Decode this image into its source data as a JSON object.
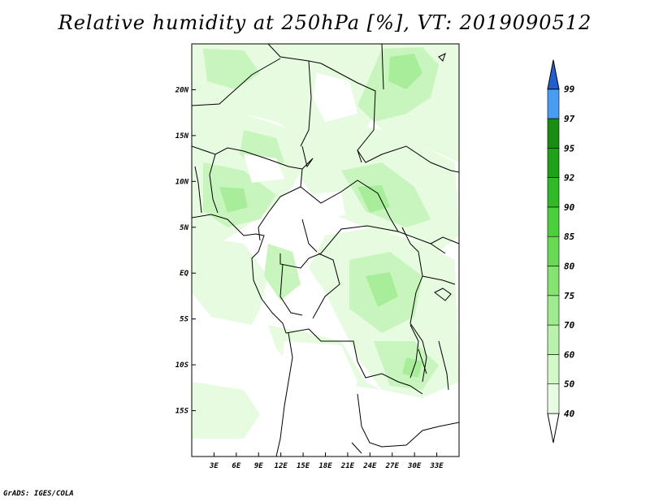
{
  "title": "Relative humidity at 250hPa [%], VT: 2019090512",
  "credit": "GrADS: IGES/COLA",
  "colors": {
    "fill_light": "#e6fbe0",
    "fill_mid": "#c8f5bd",
    "fill_deep": "#a8ee9a",
    "border": "#000000"
  },
  "map": {
    "lon_range": [
      0,
      36
    ],
    "lat_range": [
      -20,
      25
    ],
    "x_ticks": [
      {
        "lon": 3,
        "label": "3E"
      },
      {
        "lon": 6,
        "label": "6E"
      },
      {
        "lon": 9,
        "label": "9E"
      },
      {
        "lon": 12,
        "label": "12E"
      },
      {
        "lon": 15,
        "label": "15E"
      },
      {
        "lon": 18,
        "label": "18E"
      },
      {
        "lon": 21,
        "label": "21E"
      },
      {
        "lon": 24,
        "label": "24E"
      },
      {
        "lon": 27,
        "label": "27E"
      },
      {
        "lon": 30,
        "label": "30E"
      },
      {
        "lon": 33,
        "label": "33E"
      }
    ],
    "y_ticks": [
      {
        "lat": 20,
        "label": "20N"
      },
      {
        "lat": 15,
        "label": "15N"
      },
      {
        "lat": 10,
        "label": "10N"
      },
      {
        "lat": 5,
        "label": "5N"
      },
      {
        "lat": 0,
        "label": "EQ"
      },
      {
        "lat": -5,
        "label": "5S"
      },
      {
        "lat": -10,
        "label": "10S"
      },
      {
        "lat": -15,
        "label": "15S"
      }
    ]
  },
  "legend": {
    "levels": [
      {
        "label": "40",
        "color": "#e6fbe0"
      },
      {
        "label": "50",
        "color": "#d2f7c9"
      },
      {
        "label": "60",
        "color": "#b8f2ab"
      },
      {
        "label": "70",
        "color": "#9feb8f"
      },
      {
        "label": "75",
        "color": "#86e373"
      },
      {
        "label": "80",
        "color": "#6ada56"
      },
      {
        "label": "85",
        "color": "#4ccf3c"
      },
      {
        "label": "90",
        "color": "#30ba28"
      },
      {
        "label": "92",
        "color": "#1fa11b"
      },
      {
        "label": "95",
        "color": "#1a8c14"
      },
      {
        "label": "97",
        "color": "#4a9cf0"
      },
      {
        "label": "99",
        "color": "#2b78e0"
      }
    ],
    "top_color": "#1f5fd0"
  }
}
